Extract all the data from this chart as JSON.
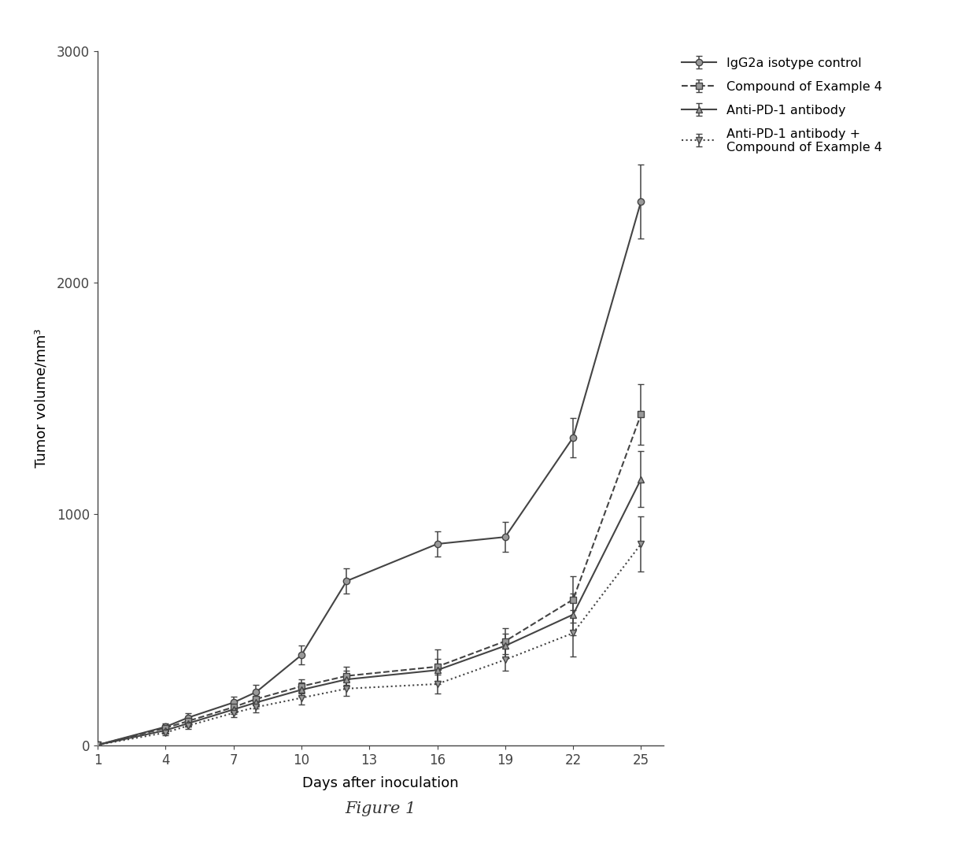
{
  "title": "Figure 1",
  "xlabel": "Days after inoculation",
  "ylabel": "Tumor volume/mm³",
  "xlim": [
    1,
    26
  ],
  "ylim": [
    0,
    3000
  ],
  "yticks": [
    0,
    1000,
    2000,
    3000
  ],
  "xticks": [
    1,
    4,
    7,
    10,
    13,
    16,
    19,
    22,
    25
  ],
  "series": [
    {
      "label": "IgG2a isotype control",
      "x": [
        1,
        4,
        5,
        7,
        8,
        10,
        12,
        16,
        19,
        22,
        25
      ],
      "y": [
        2,
        80,
        120,
        185,
        230,
        390,
        710,
        870,
        900,
        1330,
        2350
      ],
      "yerr": [
        2,
        15,
        20,
        25,
        30,
        40,
        55,
        55,
        65,
        85,
        160
      ],
      "color": "#444444",
      "linestyle": "-",
      "marker": "o",
      "markersize": 6,
      "linewidth": 1.5
    },
    {
      "label": "Compound of Example 4",
      "x": [
        1,
        4,
        5,
        7,
        8,
        10,
        12,
        16,
        19,
        22,
        25
      ],
      "y": [
        2,
        75,
        105,
        165,
        200,
        255,
        300,
        340,
        450,
        630,
        1430
      ],
      "yerr": [
        2,
        12,
        18,
        22,
        28,
        30,
        40,
        75,
        55,
        100,
        130
      ],
      "color": "#444444",
      "linestyle": "--",
      "marker": "s",
      "markersize": 6,
      "linewidth": 1.5
    },
    {
      "label": "Anti-PD-1 antibody",
      "x": [
        1,
        4,
        5,
        7,
        8,
        10,
        12,
        16,
        19,
        22,
        25
      ],
      "y": [
        2,
        65,
        95,
        155,
        185,
        240,
        285,
        325,
        430,
        565,
        1150
      ],
      "yerr": [
        2,
        10,
        15,
        20,
        25,
        30,
        38,
        48,
        52,
        90,
        120
      ],
      "color": "#444444",
      "linestyle": "-",
      "marker": "^",
      "markersize": 6,
      "linewidth": 1.5
    },
    {
      "label": "Anti-PD-1 antibody +\nCompound of Example 4",
      "x": [
        1,
        4,
        5,
        7,
        8,
        10,
        12,
        16,
        19,
        22,
        25
      ],
      "y": [
        2,
        55,
        85,
        140,
        165,
        205,
        245,
        265,
        370,
        485,
        870
      ],
      "yerr": [
        2,
        10,
        15,
        18,
        22,
        28,
        32,
        42,
        48,
        100,
        120
      ],
      "color": "#444444",
      "linestyle": ":",
      "marker": "v",
      "markersize": 6,
      "linewidth": 1.5
    }
  ],
  "background_color": "#ffffff",
  "legend_fontsize": 11.5,
  "axis_fontsize": 13,
  "tick_fontsize": 12,
  "title_fontsize": 15,
  "figsize": [
    12.4,
    10.76
  ],
  "dpi": 100
}
